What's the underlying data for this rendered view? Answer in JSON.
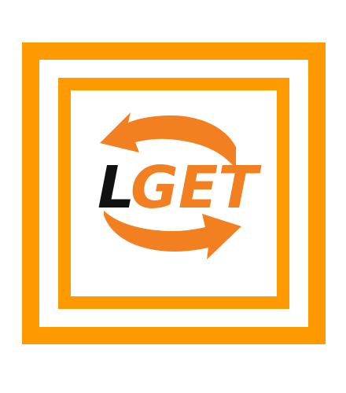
{
  "logo": {
    "name": "LGET",
    "letter_black": "L",
    "letters_orange": "GET",
    "colors": {
      "accent": "#ff9900",
      "arrow": "#f38020",
      "text_dark": "#111111",
      "background": "#ffffff"
    },
    "icons": [
      "circular-arrows-icon"
    ]
  }
}
